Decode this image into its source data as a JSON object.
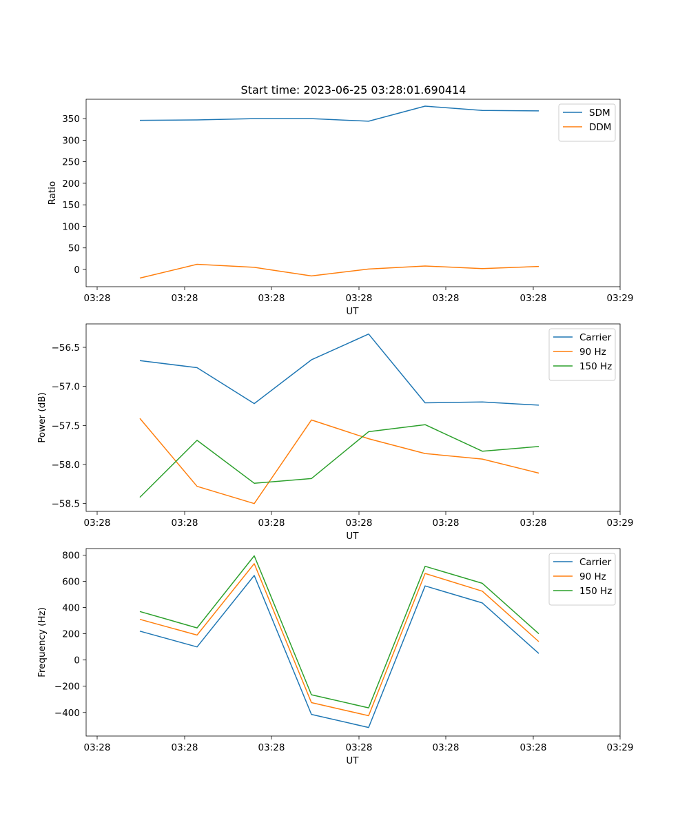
{
  "figure": {
    "title": "Start time: 2023-06-25 03:28:01.690414"
  },
  "chart_data": [
    {
      "type": "line",
      "title": "Start time: 2023-06-25 03:28:01.690414",
      "xlabel": "UT",
      "ylabel": "Ratio",
      "x_tick_labels": [
        "03:28",
        "03:28",
        "03:28",
        "03:28",
        "03:28",
        "03:28",
        "03:29"
      ],
      "y_ticks": [
        0,
        50,
        100,
        150,
        200,
        250,
        300,
        350
      ],
      "ylim": [
        -40,
        395
      ],
      "legend_position": "upper right",
      "series": [
        {
          "name": "SDM",
          "color": "#1f77b4",
          "values": [
            346,
            347,
            350,
            350,
            344,
            379,
            369,
            368
          ]
        },
        {
          "name": "DDM",
          "color": "#ff7f0e",
          "values": [
            -20,
            12,
            5,
            -15,
            1,
            8,
            2,
            7
          ]
        }
      ]
    },
    {
      "type": "line",
      "title": "",
      "xlabel": "UT",
      "ylabel": "Power (dB)",
      "x_tick_labels": [
        "03:28",
        "03:28",
        "03:28",
        "03:28",
        "03:28",
        "03:28",
        "03:29"
      ],
      "y_ticks": [
        -58.5,
        -58.0,
        -57.5,
        -57.0,
        -56.5
      ],
      "y_tick_labels": [
        "−58.5",
        "−58.0",
        "−57.5",
        "−57.0",
        "−56.5"
      ],
      "ylim": [
        -58.6,
        -56.2
      ],
      "legend_position": "upper right",
      "series": [
        {
          "name": "Carrier",
          "color": "#1f77b4",
          "values": [
            -56.67,
            -56.76,
            -57.22,
            -56.66,
            -56.33,
            -57.21,
            -57.2,
            -57.24
          ]
        },
        {
          "name": "90 Hz",
          "color": "#ff7f0e",
          "values": [
            -57.41,
            -58.28,
            -58.5,
            -57.43,
            -57.67,
            -57.86,
            -57.93,
            -58.11
          ]
        },
        {
          "name": "150 Hz",
          "color": "#2ca02c",
          "values": [
            -58.42,
            -57.69,
            -58.24,
            -58.18,
            -57.58,
            -57.49,
            -57.83,
            -57.77
          ]
        }
      ]
    },
    {
      "type": "line",
      "title": "",
      "xlabel": "UT",
      "ylabel": "Frequency (Hz)",
      "x_tick_labels": [
        "03:28",
        "03:28",
        "03:28",
        "03:28",
        "03:28",
        "03:28",
        "03:29"
      ],
      "y_ticks": [
        -400,
        -200,
        0,
        200,
        400,
        600,
        800
      ],
      "y_tick_labels": [
        "−400",
        "−200",
        "0",
        "200",
        "400",
        "600",
        "800"
      ],
      "ylim": [
        -580,
        850
      ],
      "legend_position": "upper right",
      "series": [
        {
          "name": "Carrier",
          "color": "#1f77b4",
          "values": [
            220,
            100,
            645,
            -415,
            -515,
            565,
            435,
            50
          ]
        },
        {
          "name": "90 Hz",
          "color": "#ff7f0e",
          "values": [
            310,
            190,
            735,
            -325,
            -425,
            660,
            525,
            140
          ]
        },
        {
          "name": "150 Hz",
          "color": "#2ca02c",
          "values": [
            370,
            245,
            795,
            -265,
            -365,
            715,
            585,
            200
          ]
        }
      ]
    }
  ]
}
